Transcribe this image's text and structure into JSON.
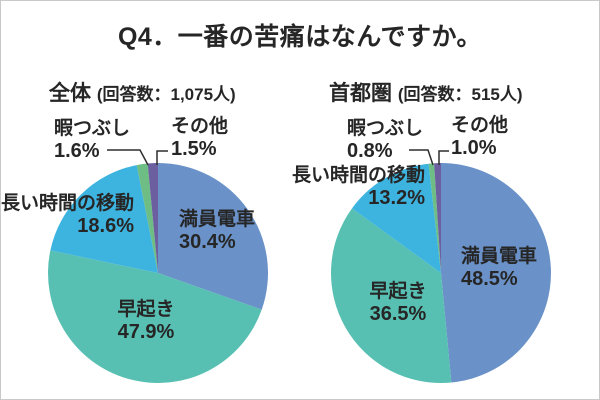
{
  "title": "Q4．一番の苦痛はなんですか。",
  "chart_data": [
    {
      "type": "pie",
      "title": "全体",
      "subtitle": "(回答数：1,075人)",
      "respondents": 1075,
      "start_angle_deg": 0,
      "direction": "clockwise",
      "legend_position": "none",
      "slices": [
        {
          "key": "crowded-train",
          "label": "満員電車",
          "value": 30.4,
          "pct_label": "30.4%",
          "color": "#6A92C8"
        },
        {
          "key": "early-rising",
          "label": "早起き",
          "value": 47.9,
          "pct_label": "47.9%",
          "color": "#57C0B2"
        },
        {
          "key": "long-travel",
          "label": "長い時間の移動",
          "value": 18.6,
          "pct_label": "18.6%",
          "color": "#3DB4E0"
        },
        {
          "key": "killing-time",
          "label": "暇つぶし",
          "value": 1.6,
          "pct_label": "1.6%",
          "color": "#6DBD85"
        },
        {
          "key": "other",
          "label": "その他",
          "value": 1.5,
          "pct_label": "1.5%",
          "color": "#6C5FA0"
        }
      ]
    },
    {
      "type": "pie",
      "title": "首都圏",
      "subtitle": "(回答数：515人)",
      "respondents": 515,
      "start_angle_deg": 0,
      "direction": "clockwise",
      "legend_position": "none",
      "slices": [
        {
          "key": "crowded-train",
          "label": "満員電車",
          "value": 48.5,
          "pct_label": "48.5%",
          "color": "#6A92C8"
        },
        {
          "key": "early-rising",
          "label": "早起き",
          "value": 36.5,
          "pct_label": "36.5%",
          "color": "#57C0B2"
        },
        {
          "key": "long-travel",
          "label": "長い時間の移動",
          "value": 13.2,
          "pct_label": "13.2%",
          "color": "#3DB4E0"
        },
        {
          "key": "killing-time",
          "label": "暇つぶし",
          "value": 0.8,
          "pct_label": "0.8%",
          "color": "#6DBD85"
        },
        {
          "key": "other",
          "label": "その他",
          "value": 1.0,
          "pct_label": "1.0%",
          "color": "#6C5FA0"
        }
      ]
    }
  ],
  "colors": {
    "text": "#262626",
    "callout_line": "#2f2f2f",
    "background": "#ffffff",
    "border": "#c9c9c9"
  }
}
